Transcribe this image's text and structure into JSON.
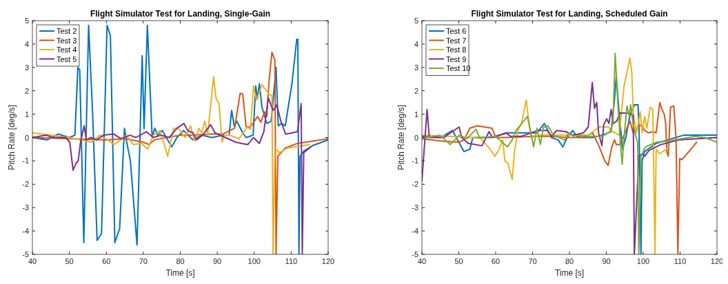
{
  "chart_data": [
    {
      "type": "line",
      "title": "Flight Simulator Test for Landing, Single-Gain",
      "xlabel": "Time [s]",
      "ylabel": "Pitch Rate [deg/s]",
      "xlim": [
        40,
        120
      ],
      "ylim": [
        -5,
        5
      ],
      "xticks": [
        40,
        50,
        60,
        70,
        80,
        90,
        100,
        110,
        120
      ],
      "yticks": [
        -5,
        -4,
        -3,
        -2,
        -1,
        0,
        1,
        2,
        3,
        4,
        5
      ],
      "legend": "top left",
      "series": [
        {
          "name": "Test 2",
          "color": "#0072bd",
          "x": [
            40,
            44,
            47,
            50,
            51.5,
            52.3,
            52.8,
            53.9,
            55.2,
            56.3,
            57.5,
            58.7,
            59.4,
            60.2,
            61.1,
            62.3,
            63.6,
            64.9,
            65.4,
            66.5,
            68.3,
            69.7,
            70.2,
            71.1,
            72.4,
            73.1,
            73.9,
            75.1,
            76.6,
            77.7,
            79.1,
            80.9,
            83.4,
            85.8,
            88.5,
            91.6,
            93.2,
            93.9,
            94.6,
            95.3,
            96.9,
            97.8,
            99.7,
            100.4,
            100.9,
            101.4,
            102.1,
            103.4,
            104.6,
            105.9,
            106.5,
            107.4,
            108.4,
            110.2,
            111.5,
            111.8,
            112.1,
            112.4,
            113.5,
            116,
            120
          ],
          "values": [
            0,
            -0.1,
            0.15,
            0,
            0.1,
            3,
            2.9,
            -4.5,
            4.8,
            1,
            -4.4,
            -4.1,
            0,
            4.8,
            4.35,
            -4.5,
            -3.9,
            0.4,
            -0.1,
            -1,
            -4.6,
            3.5,
            0.38,
            4.8,
            0,
            0.4,
            0.1,
            0.3,
            -0.1,
            -0.4,
            0,
            0.3,
            -0.1,
            0.1,
            0,
            0.1,
            0.1,
            1.16,
            0.5,
            0.7,
            0.2,
            0,
            0.1,
            2.2,
            1.66,
            2.3,
            1.3,
            0.6,
            0.7,
            3,
            0.5,
            0.6,
            0.5,
            2.3,
            4.2,
            4.2,
            -5,
            -0.8,
            -0.57,
            -0.33,
            -0.1
          ]
        },
        {
          "name": "Test 3",
          "color": "#d95319",
          "x": [
            40,
            50,
            60,
            65,
            70,
            71.5,
            73,
            80,
            83.5,
            88,
            91.6,
            94.7,
            96.2,
            96.9,
            97.8,
            99,
            100.9,
            101.8,
            102.8,
            103.4,
            104,
            104.8,
            105.6,
            105.9,
            106.4,
            108.4,
            111.5,
            120
          ],
          "values": [
            0,
            -0.05,
            -0.1,
            -0.05,
            -0.2,
            -0.3,
            -0.1,
            0.1,
            0.1,
            0.15,
            0.15,
            0.4,
            1.9,
            1.86,
            0.45,
            0.45,
            0.9,
            0.65,
            1.1,
            0.9,
            2.4,
            3.65,
            3.3,
            -5,
            -0.8,
            -0.45,
            -0.26,
            -0.05
          ]
        },
        {
          "name": "Test 4",
          "color": "#edb120",
          "x": [
            40,
            45,
            50,
            56,
            58.2,
            60.3,
            62.1,
            64,
            65.4,
            67.3,
            69.5,
            71.2,
            72.7,
            74.5,
            76.6,
            78.2,
            79.8,
            81.3,
            82.8,
            83.7,
            84.1,
            85,
            85.8,
            86.6,
            87.4,
            89,
            89.7,
            90.5,
            91.3,
            91.9,
            93.4,
            95.9,
            98.1,
            99,
            99.8,
            100.6,
            102.1,
            104,
            104.8,
            105.1,
            105.6,
            106.8,
            109,
            115
          ],
          "values": [
            0.2,
            0.1,
            0,
            -0.2,
            0.1,
            -0.1,
            -0.3,
            -0.1,
            0.1,
            -0.3,
            -0.25,
            -0.5,
            0.1,
            0.3,
            -0.8,
            0.4,
            0.35,
            0,
            0.5,
            -0.1,
            -0.15,
            0.4,
            0.2,
            0.7,
            0.1,
            2.6,
            1.65,
            1.45,
            -0.2,
            0.1,
            0.1,
            -0.05,
            0.45,
            0.35,
            2.2,
            1.6,
            2.25,
            1.85,
            1.8,
            -5,
            -0.45,
            -0.65,
            -0.45,
            -0.3
          ]
        },
        {
          "name": "Test 5",
          "color": "#7e2f8e",
          "x": [
            40,
            43.7,
            45.6,
            49,
            50.1,
            51,
            51.8,
            52.4,
            53,
            54,
            54.6,
            55.8,
            57.4,
            59.2,
            62,
            63.9,
            66.4,
            68,
            70.8,
            72.7,
            74.8,
            77,
            79.1,
            81,
            82,
            83.4,
            84.4,
            86,
            88.2,
            89.4,
            92.2,
            95,
            96.5,
            98.3,
            99.8,
            101.4,
            102.6,
            103.8,
            105.1,
            106.1,
            107.2,
            108.5,
            110.3,
            111.7,
            112.7,
            113,
            113.4,
            115.3
          ],
          "values": [
            0,
            0.1,
            0,
            0,
            -0.2,
            -1.4,
            -1.1,
            -1,
            -0.2,
            0.5,
            -0.1,
            0,
            -0.1,
            0.1,
            0.15,
            -0.05,
            0.1,
            0,
            0.25,
            0,
            0.1,
            0,
            0.4,
            0.6,
            0.3,
            0.2,
            -0.1,
            0.1,
            0.55,
            0.2,
            0,
            -0.2,
            -0.25,
            -0.3,
            0,
            -0.25,
            0.25,
            1.7,
            1.16,
            1.4,
            0.7,
            0.15,
            0.2,
            0.25,
            1.45,
            -5,
            -0.65,
            -0.4
          ]
        }
      ]
    },
    {
      "type": "line",
      "title": "Flight Simulator Test for Landing, Scheduled Gain",
      "xlabel": "Time [s]",
      "ylabel": "Pitch Rate [deg/s]",
      "xlim": [
        40,
        120
      ],
      "ylim": [
        -5,
        5
      ],
      "xticks": [
        40,
        50,
        60,
        70,
        80,
        90,
        100,
        110,
        120
      ],
      "yticks": [
        -5,
        -4,
        -3,
        -2,
        -1,
        0,
        1,
        2,
        3,
        4,
        5
      ],
      "legend": "top left",
      "series": [
        {
          "name": "Test 6",
          "color": "#0072bd",
          "x": [
            40,
            45,
            48.3,
            49.3,
            51.4,
            53,
            53.8,
            58.8,
            63.2,
            67.5,
            71.2,
            73.2,
            75.1,
            76.9,
            78.2,
            79.4,
            80.9,
            82,
            84,
            86.3,
            88.8,
            91.3,
            92.2,
            92.7,
            93.5,
            94.4,
            95.3,
            96.4,
            97.6,
            98.6,
            98.9,
            99.4,
            99.7,
            100.4,
            103.5,
            106.6,
            111,
            120
          ],
          "values": [
            0.05,
            0,
            0.3,
            0,
            -0.6,
            -0.5,
            0,
            0,
            0.2,
            0.2,
            0.2,
            0.6,
            0,
            -0.1,
            -0.4,
            0,
            0.3,
            0.05,
            0,
            0,
            0.1,
            0.25,
            1.6,
            2.6,
            1,
            -0.5,
            0,
            0.95,
            1.4,
            1.4,
            0.2,
            -5,
            -1,
            -0.6,
            -0.25,
            -0.1,
            0.1,
            0.1
          ]
        },
        {
          "name": "Test 7",
          "color": "#d95319",
          "x": [
            40,
            45,
            50,
            51.5,
            53,
            55,
            57,
            59,
            60,
            63,
            70,
            75,
            80,
            84,
            86.3,
            88.1,
            89.6,
            90.5,
            91.5,
            92.2,
            92.7,
            93.6,
            94.8,
            96.4,
            97.3,
            98.6,
            99.5,
            100.4,
            101.4,
            102.6,
            103.5,
            104.5,
            105.1,
            105.7,
            106.1,
            106.4,
            106.8,
            107.4,
            108.3,
            108.9,
            109.4,
            109.9,
            110.5,
            112.4,
            114.5
          ],
          "values": [
            -0.05,
            -0.15,
            -0.2,
            -0.1,
            0.4,
            0.5,
            0.45,
            0.4,
            0,
            0,
            0.05,
            0.05,
            0,
            0,
            0.2,
            -0.4,
            -1,
            -1.2,
            -0.4,
            -0.1,
            -0.3,
            -0.3,
            0.1,
            0.7,
            0.2,
            0.45,
            0.55,
            0.3,
            0.2,
            0.25,
            0.2,
            1.5,
            1.2,
            1,
            0.6,
            -0.6,
            -0.8,
            1.3,
            1.35,
            0,
            -5,
            -0.9,
            -0.95,
            -0.6,
            -0.2
          ]
        },
        {
          "name": "Test 8",
          "color": "#edb120",
          "x": [
            40,
            47.7,
            53.9,
            56,
            58.5,
            59.8,
            61,
            61.9,
            62.5,
            63.3,
            64.5,
            65.1,
            66,
            67,
            68.3,
            68.9,
            69.6,
            72,
            76,
            81,
            85.1,
            88.1,
            90.6,
            91.3,
            93.5,
            94.8,
            96.4,
            96.9,
            97.3,
            98.2,
            99.2,
            99.7,
            100.4,
            101,
            101.9,
            102.6,
            103.2,
            103.5,
            104.4,
            106.3,
            106.8
          ],
          "values": [
            0.1,
            0.05,
            0,
            -0.05,
            -0.5,
            -0.8,
            -0.5,
            -0.1,
            -1,
            -1.1,
            -1.8,
            -0.6,
            0.3,
            0.6,
            1.6,
            0.8,
            0,
            0.1,
            0.1,
            0.1,
            0.1,
            0.45,
            0.45,
            0.3,
            0.1,
            2.2,
            3.4,
            2.8,
            1,
            0.2,
            1.1,
            0.2,
            0.9,
            0.4,
            1.3,
            1.2,
            -5,
            -0.5,
            -0.7,
            -0.5,
            -0.4
          ]
        },
        {
          "name": "Test 9",
          "color": "#7e2f8e",
          "x": [
            40,
            41.4,
            42,
            46,
            47.7,
            50.1,
            50.8,
            52.6,
            56.3,
            58.2,
            59.2,
            62.8,
            64,
            67,
            71.3,
            74,
            75.2,
            76.5,
            79,
            81,
            83.8,
            85.1,
            86.2,
            86.8,
            87.4,
            87.9,
            88.8,
            89.3,
            90.1,
            90.7,
            91.3,
            91.9,
            92.8,
            93.7,
            95.6,
            97.3,
            97.6,
            98.8,
            99.7,
            100.4,
            101.6,
            104.8,
            109.7,
            120
          ],
          "values": [
            -1.85,
            1.2,
            0,
            0,
            0.2,
            0.45,
            0,
            -0.25,
            -0.35,
            0.25,
            0,
            0.2,
            0.05,
            0.05,
            0.3,
            0.3,
            0.05,
            0.3,
            0.25,
            0.1,
            0.2,
            0.45,
            2.35,
            1.25,
            1.5,
            0.2,
            -0.35,
            0.55,
            0.8,
            0.6,
            1.2,
            0.6,
            0.7,
            1.05,
            1.05,
            0.95,
            -5,
            -0.8,
            -0.7,
            -0.8,
            -0.55,
            -0.3,
            -0.1,
            0
          ]
        },
        {
          "name": "Test 10",
          "color": "#77ac30",
          "x": [
            40,
            41.4,
            44.8,
            47.7,
            50.1,
            52.2,
            54.7,
            55.6,
            60,
            63.2,
            64.5,
            65.5,
            68.6,
            69.4,
            70.3,
            71.2,
            72.1,
            73,
            74.2,
            75.6,
            78.7,
            79.8,
            81.6,
            82.6,
            85.1,
            88.8,
            91,
            91.8,
            92.4,
            93.1,
            93.8,
            94.3,
            94.7,
            95.6,
            96.2,
            96.6,
            97.2,
            97.9,
            98.5,
            98.8,
            99.4,
            100.6,
            103.7,
            106.8,
            114.2,
            116.7,
            120
          ],
          "values": [
            0,
            0,
            0.1,
            -0.3,
            0.1,
            -0.05,
            0.35,
            0,
            0.05,
            -0.4,
            -0.1,
            0.3,
            0.9,
            0.3,
            -0.4,
            0.4,
            -0.3,
            0.45,
            0.5,
            0.1,
            -0.1,
            0.2,
            0,
            0.1,
            0.05,
            0.05,
            0.25,
            0.6,
            3.6,
            1.5,
            -0.2,
            -1.15,
            -0.2,
            1.35,
            0.95,
            1.4,
            0.65,
            0.1,
            -0.2,
            -5,
            -0.8,
            -0.4,
            -0.2,
            -0.15,
            0.05,
            0,
            -0.2
          ]
        }
      ]
    }
  ]
}
